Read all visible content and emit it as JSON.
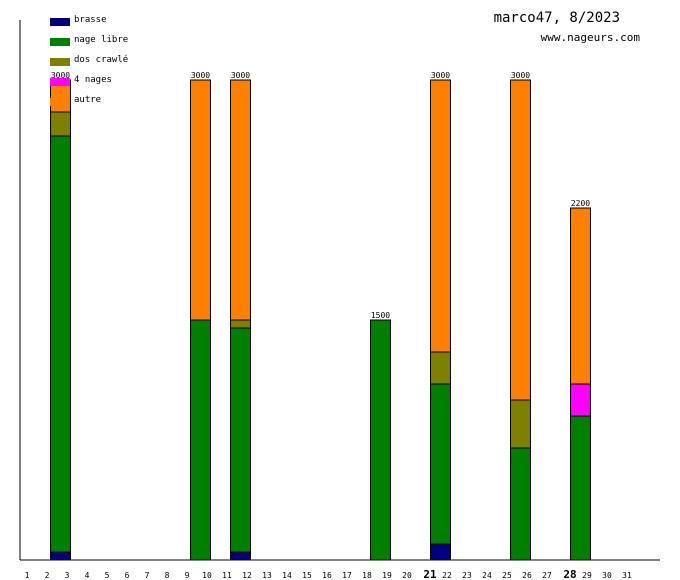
{
  "chart_data": {
    "type": "bar",
    "stacked": true,
    "title": "marco47, 8/2023",
    "subtitle": "www.nageurs.com",
    "xlabel": "",
    "ylabel": "",
    "categories": [
      "1",
      "2",
      "3",
      "4",
      "5",
      "6",
      "7",
      "8",
      "9",
      "10",
      "11",
      "12",
      "13",
      "14",
      "15",
      "16",
      "17",
      "18",
      "19",
      "20",
      "21",
      "22",
      "23",
      "24",
      "25",
      "26",
      "27",
      "28",
      "29",
      "30",
      "31"
    ],
    "highlighted_categories": [
      "21",
      "28"
    ],
    "ylim": [
      0,
      3000
    ],
    "legend_position": "top-left",
    "series": [
      {
        "name": "brasse",
        "color": "#000080",
        "values": [
          0,
          50,
          0,
          0,
          0,
          0,
          0,
          0,
          0,
          0,
          50,
          0,
          0,
          0,
          0,
          0,
          0,
          0,
          0,
          0,
          100,
          0,
          0,
          0,
          0,
          0,
          0,
          0,
          0,
          0,
          0
        ]
      },
      {
        "name": "nage libre",
        "color": "#008000",
        "values": [
          0,
          2600,
          0,
          0,
          0,
          0,
          0,
          0,
          1500,
          0,
          1400,
          0,
          0,
          0,
          0,
          0,
          0,
          1500,
          0,
          0,
          1000,
          0,
          0,
          0,
          700,
          0,
          0,
          900,
          0,
          0,
          0
        ]
      },
      {
        "name": "dos crawlé",
        "color": "#808000",
        "values": [
          0,
          150,
          0,
          0,
          0,
          0,
          0,
          0,
          0,
          0,
          50,
          0,
          0,
          0,
          0,
          0,
          0,
          0,
          0,
          0,
          200,
          0,
          0,
          0,
          300,
          0,
          0,
          0,
          0,
          0,
          0
        ]
      },
      {
        "name": "4 nages",
        "color": "#ff00ff",
        "values": [
          0,
          0,
          0,
          0,
          0,
          0,
          0,
          0,
          0,
          0,
          0,
          0,
          0,
          0,
          0,
          0,
          0,
          0,
          0,
          0,
          0,
          0,
          0,
          0,
          0,
          0,
          0,
          200,
          0,
          0,
          0
        ]
      },
      {
        "name": "autre",
        "color": "#ff8000",
        "values": [
          0,
          200,
          0,
          0,
          0,
          0,
          0,
          0,
          1500,
          0,
          1500,
          0,
          0,
          0,
          0,
          0,
          0,
          0,
          0,
          0,
          1700,
          0,
          0,
          0,
          2000,
          0,
          0,
          1100,
          0,
          0,
          0
        ]
      }
    ],
    "totals": [
      0,
      3000,
      0,
      0,
      0,
      0,
      0,
      0,
      3000,
      0,
      3000,
      0,
      0,
      0,
      0,
      0,
      0,
      1500,
      0,
      0,
      3000,
      0,
      0,
      0,
      3000,
      0,
      0,
      2200,
      0,
      0,
      0
    ]
  }
}
